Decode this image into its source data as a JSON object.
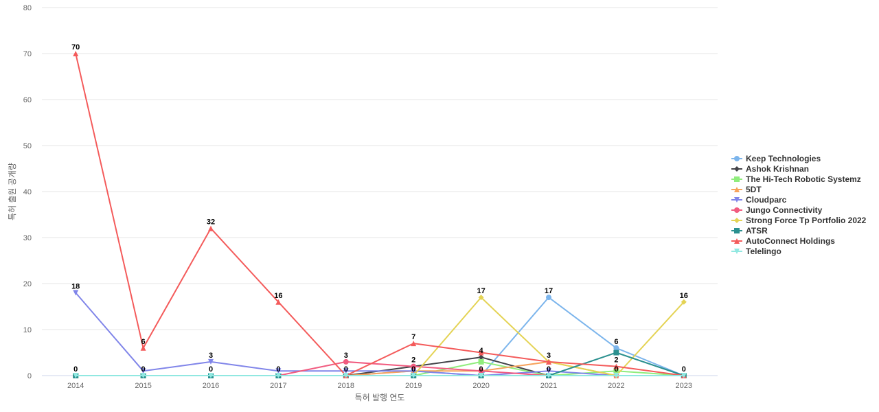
{
  "chart_data": {
    "type": "line",
    "xlabel": "특허 발행 연도",
    "ylabel": "특허 출원 공개량",
    "ylim": [
      0,
      80
    ],
    "yticks": [
      0,
      10,
      20,
      30,
      40,
      50,
      60,
      70,
      80
    ],
    "x": [
      "2014",
      "2015",
      "2016",
      "2017",
      "2018",
      "2019",
      "2020",
      "2021",
      "2022",
      "2023"
    ],
    "legend_position": "right",
    "grid": "horizontal",
    "series": [
      {
        "name": "Keep Technologies",
        "color": "#7cb5ec",
        "marker": "circle",
        "values": [
          0,
          0,
          0,
          0,
          0,
          1,
          0,
          17,
          6,
          0
        ]
      },
      {
        "name": "Ashok Krishnan",
        "color": "#434348",
        "marker": "diamond",
        "values": [
          0,
          0,
          0,
          0,
          0,
          2,
          4,
          0,
          0,
          0
        ]
      },
      {
        "name": "The Hi-Tech Robotic Systemz",
        "color": "#90ed7d",
        "marker": "square",
        "values": [
          0,
          0,
          0,
          0,
          0,
          0,
          3,
          0,
          1,
          0
        ]
      },
      {
        "name": "5DT",
        "color": "#f7a35c",
        "marker": "triangle",
        "values": [
          0,
          0,
          0,
          0,
          0,
          1,
          1,
          3,
          0,
          0
        ]
      },
      {
        "name": "Cloudparc",
        "color": "#8085e9",
        "marker": "triangle-down",
        "values": [
          18,
          1,
          3,
          1,
          1,
          1,
          0,
          1,
          0,
          0
        ]
      },
      {
        "name": "Jungo Connectivity",
        "color": "#f15c80",
        "marker": "circle",
        "values": [
          0,
          0,
          0,
          0,
          3,
          2,
          1,
          0,
          0,
          0
        ]
      },
      {
        "name": "Strong Force Tp Portfolio 2022",
        "color": "#e4d354",
        "marker": "diamond",
        "values": [
          0,
          0,
          0,
          0,
          0,
          0,
          17,
          3,
          0,
          16
        ]
      },
      {
        "name": "ATSR",
        "color": "#2b908f",
        "marker": "square",
        "values": [
          0,
          0,
          0,
          0,
          0,
          0,
          0,
          0,
          5,
          0
        ]
      },
      {
        "name": "AutoConnect Holdings",
        "color": "#f45b5b",
        "marker": "triangle",
        "values": [
          70,
          6,
          32,
          16,
          0,
          7,
          5,
          3,
          2,
          0
        ]
      },
      {
        "name": "Telelingo",
        "color": "#91e8e1",
        "marker": "triangle-down",
        "values": [
          0,
          0,
          0,
          0,
          0,
          0,
          0,
          0,
          0,
          0
        ]
      }
    ],
    "data_labels": [
      {
        "x": "2014",
        "value": "70",
        "series": "AutoConnect Holdings"
      },
      {
        "x": "2014",
        "value": "18",
        "series": "Cloudparc"
      },
      {
        "x": "2014",
        "value": "0",
        "series": "Telelingo"
      },
      {
        "x": "2015",
        "value": "6",
        "series": "AutoConnect Holdings"
      },
      {
        "x": "2015",
        "value": "0",
        "series": "Telelingo"
      },
      {
        "x": "2016",
        "value": "32",
        "series": "AutoConnect Holdings"
      },
      {
        "x": "2016",
        "value": "3",
        "series": "Cloudparc"
      },
      {
        "x": "2016",
        "value": "0",
        "series": "Telelingo"
      },
      {
        "x": "2017",
        "value": "16",
        "series": "AutoConnect Holdings"
      },
      {
        "x": "2017",
        "value": "0",
        "series": "Telelingo"
      },
      {
        "x": "2018",
        "value": "3",
        "series": "Jungo Connectivity"
      },
      {
        "x": "2018",
        "value": "0",
        "series": "Telelingo"
      },
      {
        "x": "2019",
        "value": "7",
        "series": "AutoConnect Holdings"
      },
      {
        "x": "2019",
        "value": "2",
        "series": "Ashok Krishnan"
      },
      {
        "x": "2019",
        "value": "0",
        "series": "Telelingo"
      },
      {
        "x": "2020",
        "value": "17",
        "series": "Strong Force Tp Portfolio 2022"
      },
      {
        "x": "2020",
        "value": "4",
        "series": "Ashok Krishnan"
      },
      {
        "x": "2020",
        "value": "0",
        "series": "Telelingo"
      },
      {
        "x": "2021",
        "value": "17",
        "series": "Keep Technologies"
      },
      {
        "x": "2021",
        "value": "3",
        "series": "AutoConnect Holdings"
      },
      {
        "x": "2021",
        "value": "0",
        "series": "Telelingo"
      },
      {
        "x": "2022",
        "value": "6",
        "series": "Keep Technologies"
      },
      {
        "x": "2022",
        "value": "2",
        "series": "AutoConnect Holdings"
      },
      {
        "x": "2022",
        "value": "0",
        "series": "Telelingo"
      },
      {
        "x": "2023",
        "value": "16",
        "series": "Strong Force Tp Portfolio 2022"
      },
      {
        "x": "2023",
        "value": "0",
        "series": "Telelingo"
      }
    ]
  }
}
